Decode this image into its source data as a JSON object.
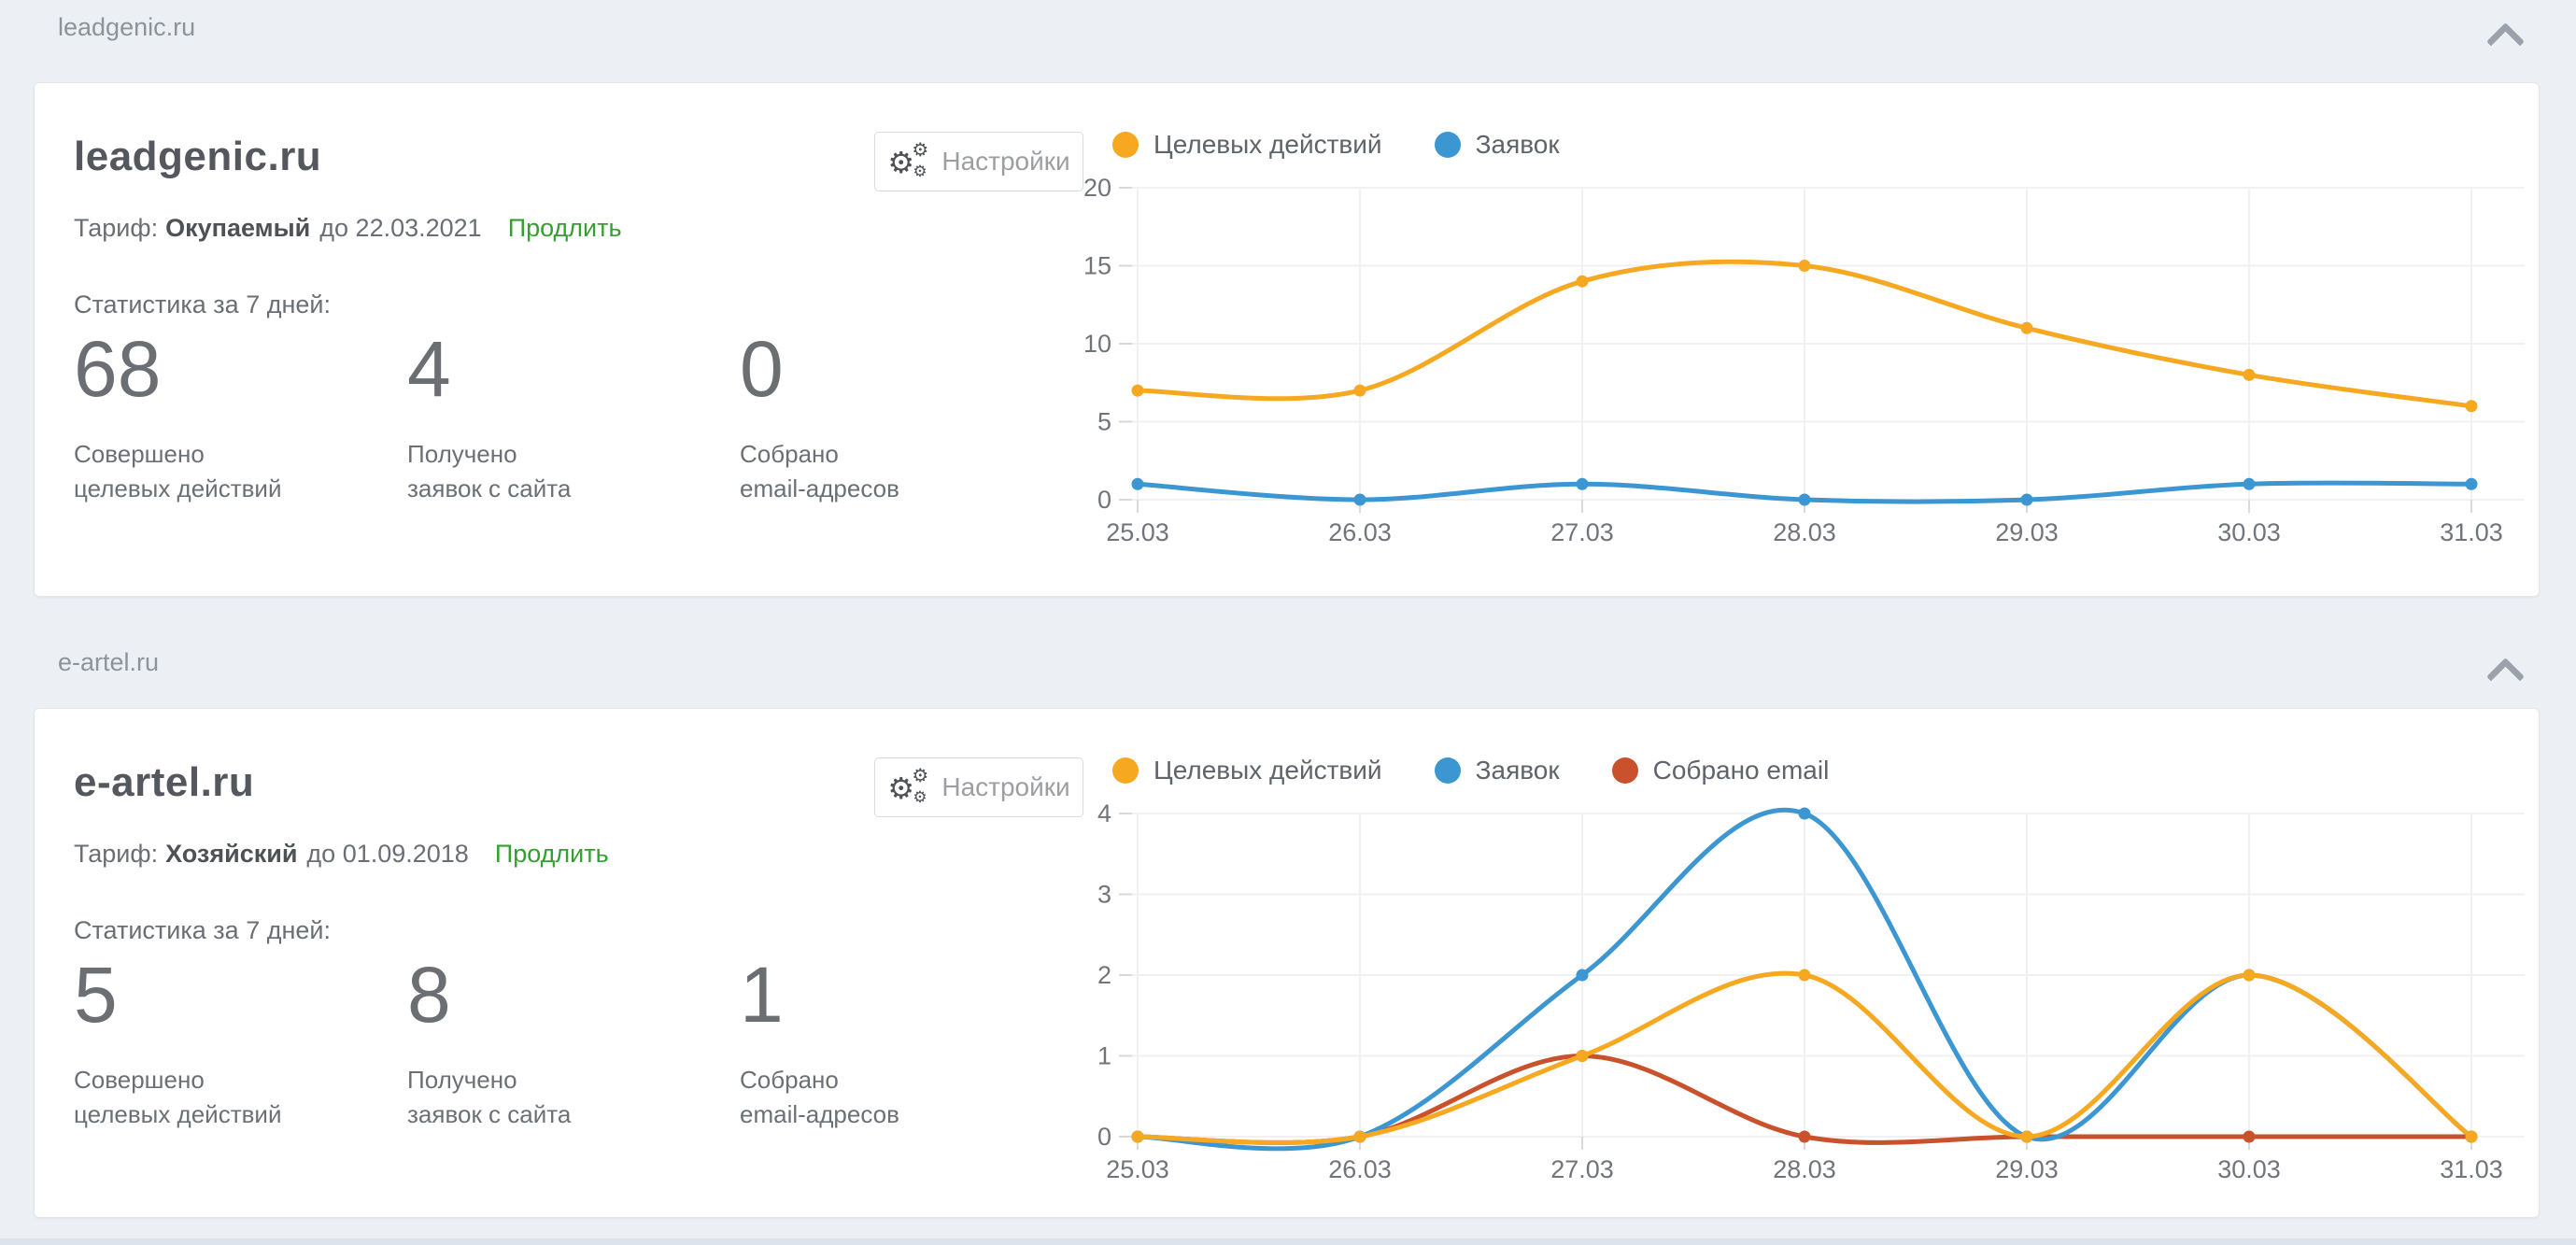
{
  "page": {
    "background": "#ecf0f5"
  },
  "sections": [
    {
      "header_label": "leadgenic.ru",
      "collapse_icon": "chevron-up",
      "card": {
        "title": "leadgenic.ru",
        "tariff_label": "Тариф:",
        "tariff_plan": "Окупаемый",
        "tariff_until": "до 22.03.2021",
        "renew_label": "Продлить",
        "stats_title": "Статистика за 7 дней:",
        "settings_label": "Настройки",
        "stats": [
          {
            "value": "68",
            "line1": "Совершено",
            "line2": "целевых действий"
          },
          {
            "value": "4",
            "line1": "Получено",
            "line2": "заявок с сайта"
          },
          {
            "value": "0",
            "line1": "Собрано",
            "line2": "email-адресов"
          }
        ]
      }
    },
    {
      "header_label": "e-artel.ru",
      "collapse_icon": "chevron-up",
      "card": {
        "title": "e-artel.ru",
        "tariff_label": "Тариф:",
        "tariff_plan": "Хозяйский",
        "tariff_until": "до 01.09.2018",
        "renew_label": "Продлить",
        "stats_title": "Статистика за 7 дней:",
        "settings_label": "Настройки",
        "stats": [
          {
            "value": "5",
            "line1": "Совершено",
            "line2": "целевых действий"
          },
          {
            "value": "8",
            "line1": "Получено",
            "line2": "заявок с сайта"
          },
          {
            "value": "1",
            "line1": "Собрано",
            "line2": "email-адресов"
          }
        ]
      }
    }
  ],
  "colors": {
    "accent_yellow": "#F6A821",
    "accent_blue": "#3C96D2",
    "accent_red": "#C9512C",
    "link_green": "#34A02F"
  },
  "chart_data": [
    {
      "type": "line",
      "x": [
        "25.03",
        "26.03",
        "27.03",
        "28.03",
        "29.03",
        "30.03",
        "31.03"
      ],
      "series": [
        {
          "name": "Целевых действий",
          "color": "#F6A821",
          "values": [
            7,
            7,
            14,
            15,
            11,
            8,
            6
          ]
        },
        {
          "name": "Заявок",
          "color": "#3C96D2",
          "values": [
            1,
            0,
            1,
            0,
            0,
            1,
            1
          ]
        }
      ],
      "ylim": [
        0,
        20
      ],
      "yticks": [
        0,
        5,
        10,
        15,
        20
      ],
      "grid": true,
      "legend_position": "top"
    },
    {
      "type": "line",
      "x": [
        "25.03",
        "26.03",
        "27.03",
        "28.03",
        "29.03",
        "30.03",
        "31.03"
      ],
      "series": [
        {
          "name": "Целевых действий",
          "color": "#F6A821",
          "values": [
            0,
            0,
            1,
            2,
            0,
            2,
            0
          ]
        },
        {
          "name": "Заявок",
          "color": "#3C96D2",
          "values": [
            0,
            0,
            2,
            4,
            0,
            2,
            0
          ]
        },
        {
          "name": "Собрано email",
          "color": "#C9512C",
          "values": [
            0,
            0,
            1,
            0,
            0,
            0,
            0
          ]
        }
      ],
      "ylim": [
        0,
        4
      ],
      "yticks": [
        0,
        1,
        2,
        3,
        4
      ],
      "grid": true,
      "legend_position": "top"
    }
  ]
}
